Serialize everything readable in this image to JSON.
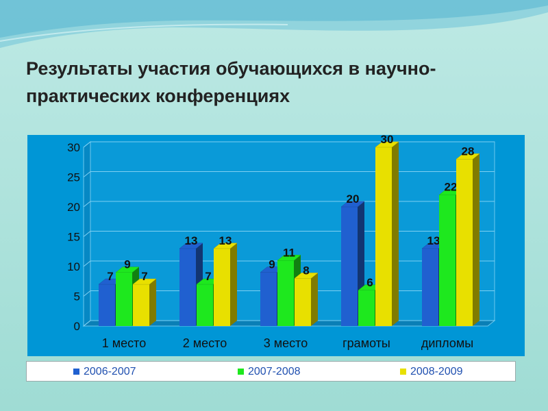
{
  "slide": {
    "title": "Результаты участия обучающихся  в научно-практических конференциях",
    "background": "#a6ded7",
    "panel_color": "#0096d6"
  },
  "chart_data": {
    "type": "bar",
    "style": "3d-clustered",
    "categories": [
      "1 место",
      "2 место",
      "3 место",
      "грамоты",
      "дипломы"
    ],
    "series": [
      {
        "name": "2006-2007",
        "color": "#2060d0",
        "values": [
          7,
          13,
          9,
          20,
          13
        ]
      },
      {
        "name": "2007-2008",
        "color": "#1ee81e",
        "values": [
          9,
          7,
          11,
          6,
          22
        ]
      },
      {
        "name": "2008-2009",
        "color": "#e8e000",
        "values": [
          7,
          13,
          8,
          30,
          28
        ]
      }
    ],
    "ylim": [
      0,
      30
    ],
    "yticks": [
      0,
      5,
      10,
      15,
      20,
      25,
      30
    ],
    "grid": true,
    "data_labels": true,
    "legend_position": "bottom"
  }
}
